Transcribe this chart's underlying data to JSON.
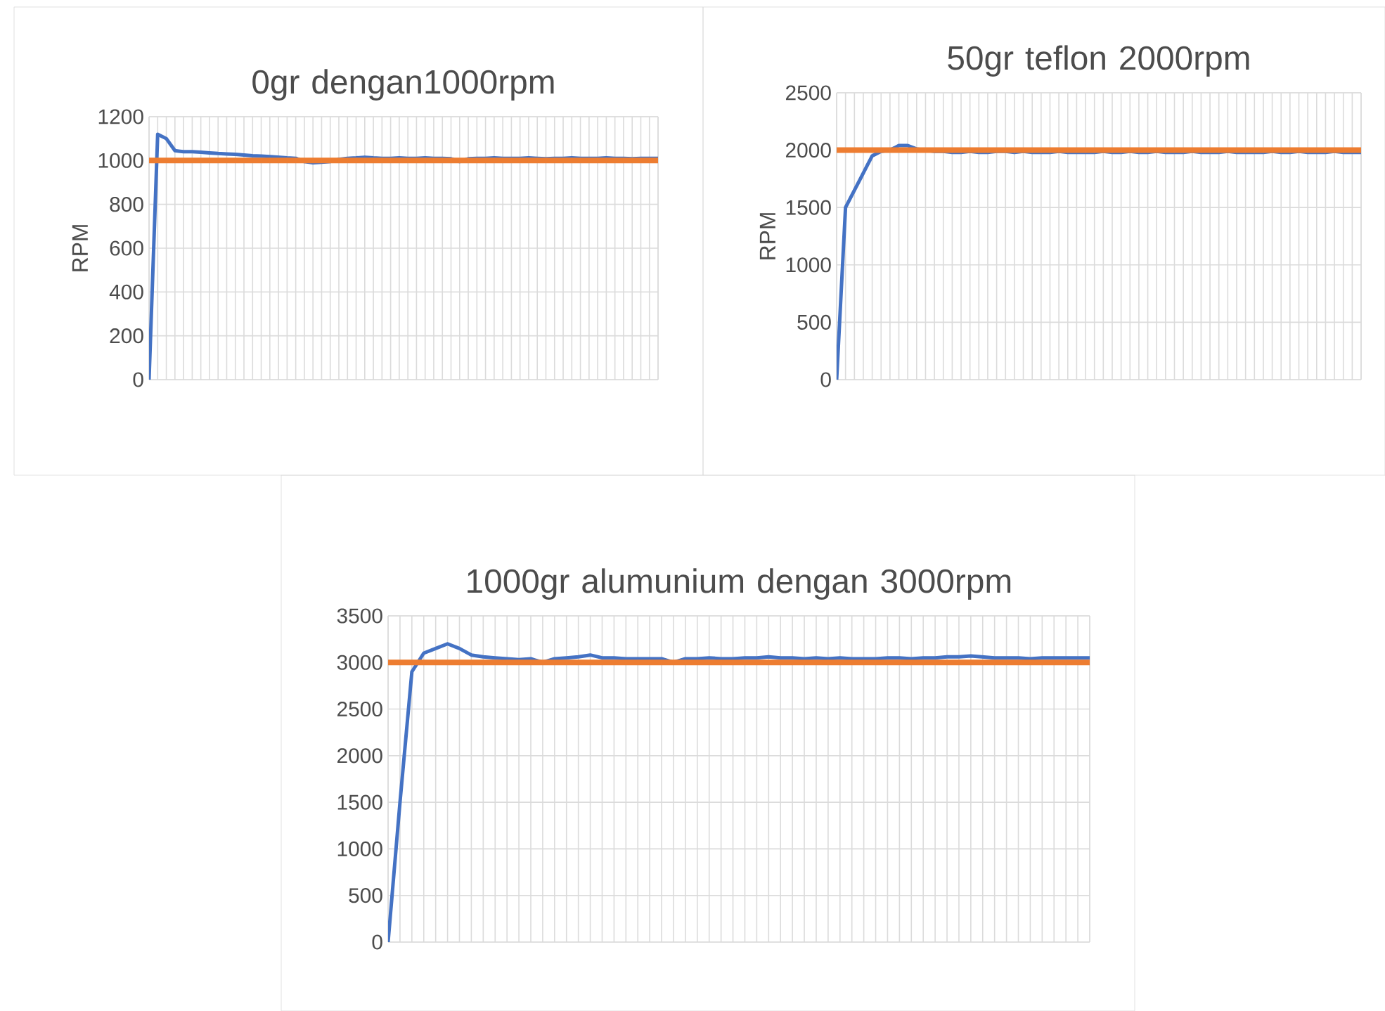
{
  "chart_data": [
    {
      "type": "line",
      "title": "0gr dengan1000rpm",
      "ylabel": "RPM",
      "ylim": [
        0,
        1200
      ],
      "yticks": [
        0,
        200,
        400,
        600,
        800,
        1000,
        1200
      ],
      "grid": true,
      "tick_labels": "y",
      "categories": [
        null,
        null,
        null,
        null,
        null,
        null,
        null,
        null,
        null,
        null,
        null,
        null,
        null,
        null,
        null,
        null,
        null,
        null,
        null,
        null,
        null,
        null,
        null,
        null,
        null,
        null,
        null,
        null,
        null,
        null,
        null,
        null,
        null,
        null,
        null,
        null,
        null,
        null,
        null,
        null,
        null,
        null,
        null,
        null,
        null,
        null,
        null,
        null,
        null,
        null,
        null,
        null,
        null,
        null,
        null,
        null,
        null,
        null,
        null,
        null
      ],
      "series": [
        {
          "color": "#4472c4",
          "values": [
            0,
            1120,
            1100,
            1045,
            1040,
            1040,
            1038,
            1035,
            1032,
            1030,
            1028,
            1025,
            1022,
            1020,
            1018,
            1015,
            1012,
            1010,
            995,
            990,
            992,
            995,
            1005,
            1010,
            1012,
            1015,
            1012,
            1010,
            1010,
            1012,
            1010,
            1010,
            1012,
            1010,
            1010,
            1008,
            995,
            1008,
            1010,
            1010,
            1012,
            1010,
            1010,
            1010,
            1012,
            1010,
            1008,
            1010,
            1010,
            1012,
            1010,
            1010,
            1010,
            1012,
            1010,
            1010,
            1008,
            1010,
            1010,
            1010
          ]
        },
        {
          "color": "#ed7d31",
          "values": [
            1000,
            1000,
            1000,
            1000,
            1000,
            1000,
            1000,
            1000,
            1000,
            1000,
            1000,
            1000,
            1000,
            1000,
            1000,
            1000,
            1000,
            1000,
            1000,
            1000,
            1000,
            1000,
            1000,
            1000,
            1000,
            1000,
            1000,
            1000,
            1000,
            1000,
            1000,
            1000,
            1000,
            1000,
            1000,
            1000,
            1000,
            1000,
            1000,
            1000,
            1000,
            1000,
            1000,
            1000,
            1000,
            1000,
            1000,
            1000,
            1000,
            1000,
            1000,
            1000,
            1000,
            1000,
            1000,
            1000,
            1000,
            1000,
            1000,
            1000
          ]
        }
      ]
    },
    {
      "type": "line",
      "title": "50gr teflon 2000rpm",
      "ylabel": "RPM",
      "ylim": [
        0,
        2500
      ],
      "yticks": [
        0,
        500,
        1000,
        1500,
        2000,
        2500
      ],
      "grid": true,
      "tick_labels": "y",
      "categories": [
        null,
        null,
        null,
        null,
        null,
        null,
        null,
        null,
        null,
        null,
        null,
        null,
        null,
        null,
        null,
        null,
        null,
        null,
        null,
        null,
        null,
        null,
        null,
        null,
        null,
        null,
        null,
        null,
        null,
        null,
        null,
        null,
        null,
        null,
        null,
        null,
        null,
        null,
        null,
        null,
        null,
        null,
        null,
        null,
        null,
        null,
        null,
        null,
        null,
        null,
        null,
        null,
        null,
        null,
        null,
        null,
        null,
        null,
        null,
        null
      ],
      "series": [
        {
          "color": "#4472c4",
          "values": [
            0,
            1500,
            1650,
            1800,
            1950,
            1990,
            2000,
            2040,
            2040,
            2010,
            2000,
            1990,
            1990,
            1980,
            1980,
            1990,
            1980,
            1980,
            1990,
            1990,
            1980,
            1990,
            1980,
            1980,
            1980,
            1990,
            1980,
            1980,
            1980,
            1980,
            1990,
            1980,
            1980,
            1990,
            1980,
            1980,
            1990,
            1980,
            1980,
            1980,
            1990,
            1980,
            1980,
            1980,
            1990,
            1980,
            1980,
            1980,
            1980,
            1990,
            1980,
            1980,
            1990,
            1980,
            1980,
            1980,
            1990,
            1980,
            1980,
            1980
          ]
        },
        {
          "color": "#ed7d31",
          "values": [
            2000,
            2000,
            2000,
            2000,
            2000,
            2000,
            2000,
            2000,
            2000,
            2000,
            2000,
            2000,
            2000,
            2000,
            2000,
            2000,
            2000,
            2000,
            2000,
            2000,
            2000,
            2000,
            2000,
            2000,
            2000,
            2000,
            2000,
            2000,
            2000,
            2000,
            2000,
            2000,
            2000,
            2000,
            2000,
            2000,
            2000,
            2000,
            2000,
            2000,
            2000,
            2000,
            2000,
            2000,
            2000,
            2000,
            2000,
            2000,
            2000,
            2000,
            2000,
            2000,
            2000,
            2000,
            2000,
            2000,
            2000,
            2000,
            2000,
            2000
          ]
        }
      ]
    },
    {
      "type": "line",
      "title": "1000gr alumunium dengan 3000rpm",
      "ylim": [
        0,
        3500
      ],
      "yticks": [
        0,
        500,
        1000,
        1500,
        2000,
        2500,
        3000,
        3500
      ],
      "grid": true,
      "tick_labels": "y",
      "categories": [
        null,
        null,
        null,
        null,
        null,
        null,
        null,
        null,
        null,
        null,
        null,
        null,
        null,
        null,
        null,
        null,
        null,
        null,
        null,
        null,
        null,
        null,
        null,
        null,
        null,
        null,
        null,
        null,
        null,
        null,
        null,
        null,
        null,
        null,
        null,
        null,
        null,
        null,
        null,
        null,
        null,
        null,
        null,
        null,
        null,
        null,
        null,
        null,
        null,
        null,
        null,
        null,
        null,
        null,
        null,
        null,
        null,
        null,
        null,
        null
      ],
      "series": [
        {
          "color": "#4472c4",
          "values": [
            0,
            1500,
            2900,
            3100,
            3150,
            3200,
            3150,
            3080,
            3060,
            3050,
            3040,
            3030,
            3040,
            3000,
            3040,
            3050,
            3060,
            3080,
            3050,
            3050,
            3040,
            3040,
            3040,
            3040,
            3000,
            3040,
            3040,
            3050,
            3040,
            3040,
            3050,
            3050,
            3060,
            3050,
            3050,
            3040,
            3050,
            3040,
            3050,
            3040,
            3040,
            3040,
            3050,
            3050,
            3040,
            3050,
            3050,
            3060,
            3060,
            3070,
            3060,
            3050,
            3050,
            3050,
            3040,
            3050,
            3050,
            3050,
            3050,
            3050
          ]
        },
        {
          "color": "#ed7d31",
          "values": [
            3000,
            3000,
            3000,
            3000,
            3000,
            3000,
            3000,
            3000,
            3000,
            3000,
            3000,
            3000,
            3000,
            3000,
            3000,
            3000,
            3000,
            3000,
            3000,
            3000,
            3000,
            3000,
            3000,
            3000,
            3000,
            3000,
            3000,
            3000,
            3000,
            3000,
            3000,
            3000,
            3000,
            3000,
            3000,
            3000,
            3000,
            3000,
            3000,
            3000,
            3000,
            3000,
            3000,
            3000,
            3000,
            3000,
            3000,
            3000,
            3000,
            3000,
            3000,
            3000,
            3000,
            3000,
            3000,
            3000,
            3000,
            3000,
            3000,
            3000
          ]
        }
      ]
    }
  ]
}
